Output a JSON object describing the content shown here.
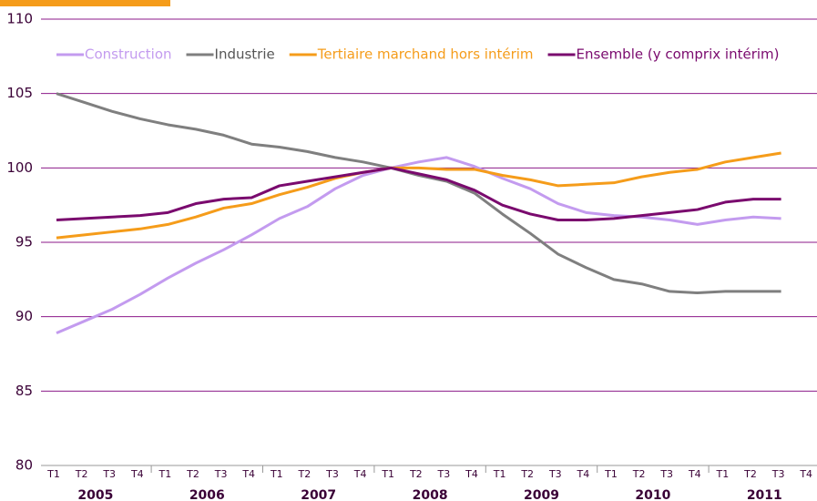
{
  "chart_data": {
    "type": "line",
    "categories": [
      "T1",
      "T2",
      "T3",
      "T4",
      "T1",
      "T2",
      "T3",
      "T4",
      "T1",
      "T2",
      "T3",
      "T4",
      "T1",
      "T2",
      "T3",
      "T4",
      "T1",
      "T2",
      "T3",
      "T4",
      "T1",
      "T2",
      "T3",
      "T4",
      "T1",
      "T2",
      "T3",
      "T4"
    ],
    "years": [
      "2005",
      "2006",
      "2007",
      "2008",
      "2009",
      "2010",
      "2011"
    ],
    "series": [
      {
        "name": "Construction",
        "color": "#c39bef",
        "values": [
          88.9,
          89.7,
          90.5,
          91.5,
          92.6,
          93.6,
          94.5,
          95.5,
          96.6,
          97.4,
          98.6,
          99.5,
          100,
          100.4,
          100.7,
          100.1,
          99.3,
          98.6,
          97.6,
          97.0,
          96.8,
          96.7,
          96.5,
          96.2,
          96.5,
          96.7,
          96.6,
          null
        ]
      },
      {
        "name": "Industrie",
        "color": "#7f7f7f",
        "values": [
          105,
          104.4,
          103.8,
          103.3,
          102.9,
          102.6,
          102.2,
          101.6,
          101.4,
          101.1,
          100.7,
          100.4,
          100,
          99.5,
          99.1,
          98.3,
          96.9,
          95.6,
          94.2,
          93.3,
          92.5,
          92.2,
          91.7,
          91.6,
          91.7,
          91.7,
          91.7,
          null
        ]
      },
      {
        "name": "Tertiaire marchand hors intérim",
        "color": "#f59c1a",
        "values": [
          95.3,
          95.5,
          95.7,
          95.9,
          96.2,
          96.7,
          97.3,
          97.6,
          98.2,
          98.7,
          99.3,
          99.7,
          100,
          100,
          99.9,
          99.9,
          99.5,
          99.2,
          98.8,
          98.9,
          99.0,
          99.4,
          99.7,
          99.9,
          100.4,
          100.7,
          101.0,
          null
        ]
      },
      {
        "name": "Ensemble (y comprix intérim)",
        "color": "#7a0a6e",
        "values": [
          96.5,
          96.6,
          96.7,
          96.8,
          97.0,
          97.6,
          97.9,
          98.0,
          98.8,
          99.1,
          99.4,
          99.7,
          100,
          99.6,
          99.2,
          98.5,
          97.5,
          96.9,
          96.5,
          96.5,
          96.6,
          96.8,
          97.0,
          97.2,
          97.7,
          97.9,
          97.9,
          null
        ]
      }
    ],
    "ylim": [
      80,
      110
    ],
    "yticks": [
      80,
      85,
      90,
      95,
      100,
      105,
      110
    ],
    "grid": true,
    "legend": "top"
  }
}
